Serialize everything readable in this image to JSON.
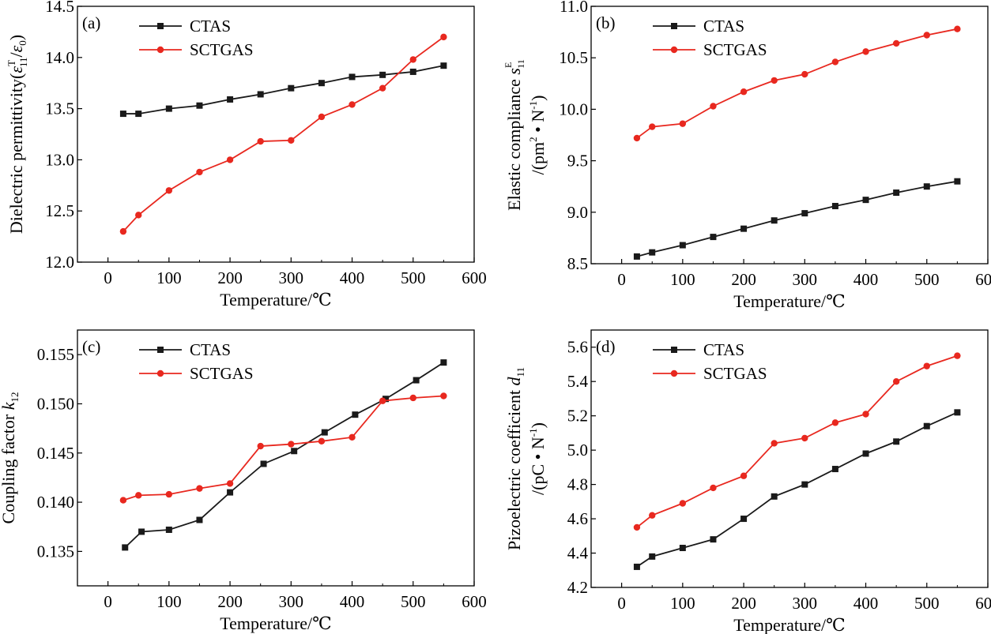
{
  "chart_data": [
    {
      "type": "line",
      "panel_label": "(a)",
      "xlabel": "Temperature/℃",
      "ylabel": "Dielectric permittivity(εT11/ε0)",
      "xlim": [
        -50,
        600
      ],
      "ylim": [
        12.0,
        14.5
      ],
      "xticks": [
        "0",
        "100",
        "200",
        "300",
        "400",
        "500",
        "600"
      ],
      "yticks": [
        "12.0",
        "12.5",
        "13.0",
        "13.5",
        "14.0",
        "14.5"
      ],
      "legend_position": "top-left",
      "series": [
        {
          "name": "CTAS",
          "color": "#1a1a1a",
          "marker": "square",
          "x": [
            25,
            50,
            100,
            150,
            200,
            250,
            300,
            350,
            400,
            450,
            500,
            550
          ],
          "y": [
            13.45,
            13.45,
            13.5,
            13.53,
            13.59,
            13.64,
            13.7,
            13.75,
            13.81,
            13.83,
            13.86,
            13.92
          ]
        },
        {
          "name": "SCTGAS",
          "color": "#e8281f",
          "marker": "circle",
          "x": [
            25,
            50,
            100,
            150,
            200,
            250,
            300,
            350,
            400,
            450,
            500,
            550
          ],
          "y": [
            12.3,
            12.46,
            12.7,
            12.88,
            13.0,
            13.18,
            13.19,
            13.42,
            13.54,
            13.7,
            13.98,
            14.2
          ]
        }
      ]
    },
    {
      "type": "line",
      "panel_label": "(b)",
      "xlabel": "Temperature/℃",
      "ylabel": "Elastic compliance sE11 /(pm2 • N-1)",
      "xlim": [
        -50,
        600
      ],
      "ylim": [
        8.5,
        11.0
      ],
      "xticks": [
        "0",
        "100",
        "200",
        "300",
        "400",
        "500",
        "600"
      ],
      "yticks": [
        "8.5",
        "9.0",
        "9.5",
        "10.0",
        "10.5",
        "11.0"
      ],
      "legend_position": "top-left",
      "series": [
        {
          "name": "CTAS",
          "color": "#1a1a1a",
          "marker": "square",
          "x": [
            25,
            50,
            100,
            150,
            200,
            250,
            300,
            350,
            400,
            450,
            500,
            550
          ],
          "y": [
            8.57,
            8.61,
            8.68,
            8.76,
            8.84,
            8.92,
            8.99,
            9.06,
            9.12,
            9.19,
            9.25,
            9.3
          ]
        },
        {
          "name": "SCTGAS",
          "color": "#e8281f",
          "marker": "circle",
          "x": [
            25,
            50,
            100,
            150,
            200,
            250,
            300,
            350,
            400,
            450,
            500,
            550
          ],
          "y": [
            9.72,
            9.83,
            9.86,
            10.03,
            10.17,
            10.28,
            10.34,
            10.46,
            10.56,
            10.64,
            10.72,
            10.78
          ]
        }
      ]
    },
    {
      "type": "line",
      "panel_label": "(c)",
      "xlabel": "Temperature/℃",
      "ylabel": "Coupling factor k12",
      "xlim": [
        -50,
        600
      ],
      "ylim": [
        0.1315,
        0.1575
      ],
      "xticks": [
        "0",
        "100",
        "200",
        "300",
        "400",
        "500",
        "600"
      ],
      "yticks": [
        "0.135",
        "0.140",
        "0.145",
        "0.150",
        "0.155"
      ],
      "legend_position": "top-left",
      "series": [
        {
          "name": "CTAS",
          "color": "#1a1a1a",
          "marker": "square",
          "x": [
            28,
            55,
            100,
            150,
            200,
            255,
            305,
            355,
            405,
            455,
            505,
            550
          ],
          "y": [
            0.1354,
            0.137,
            0.1372,
            0.1382,
            0.141,
            0.1439,
            0.1452,
            0.1471,
            0.1489,
            0.1505,
            0.1524,
            0.1542
          ]
        },
        {
          "name": "SCTGAS",
          "color": "#e8281f",
          "marker": "circle",
          "x": [
            25,
            50,
            100,
            150,
            200,
            250,
            300,
            350,
            400,
            450,
            500,
            550
          ],
          "y": [
            0.1402,
            0.1407,
            0.1408,
            0.1414,
            0.1419,
            0.1457,
            0.1459,
            0.1462,
            0.1466,
            0.1503,
            0.1506,
            0.1508
          ]
        }
      ]
    },
    {
      "type": "line",
      "panel_label": "(d)",
      "xlabel": "Temperature/℃",
      "ylabel": "Pizoelectric coefficient d11 /(pC • N-1)",
      "xlim": [
        -50,
        600
      ],
      "ylim": [
        4.2,
        5.7
      ],
      "xticks": [
        "0",
        "100",
        "200",
        "300",
        "400",
        "500",
        "600"
      ],
      "yticks": [
        "4.2",
        "4.4",
        "4.6",
        "4.8",
        "5.0",
        "5.2",
        "5.4",
        "5.6"
      ],
      "legend_position": "top-left",
      "series": [
        {
          "name": "CTAS",
          "color": "#1a1a1a",
          "marker": "square",
          "x": [
            25,
            50,
            100,
            150,
            200,
            250,
            300,
            350,
            400,
            450,
            500,
            550
          ],
          "y": [
            4.32,
            4.38,
            4.43,
            4.48,
            4.6,
            4.73,
            4.8,
            4.89,
            4.98,
            5.05,
            5.14,
            5.22
          ]
        },
        {
          "name": "SCTGAS",
          "color": "#e8281f",
          "marker": "circle",
          "x": [
            25,
            50,
            100,
            150,
            200,
            250,
            300,
            350,
            400,
            450,
            500,
            550
          ],
          "y": [
            4.55,
            4.62,
            4.69,
            4.78,
            4.85,
            5.04,
            5.07,
            5.16,
            5.21,
            5.4,
            5.49,
            5.55
          ]
        }
      ]
    }
  ]
}
